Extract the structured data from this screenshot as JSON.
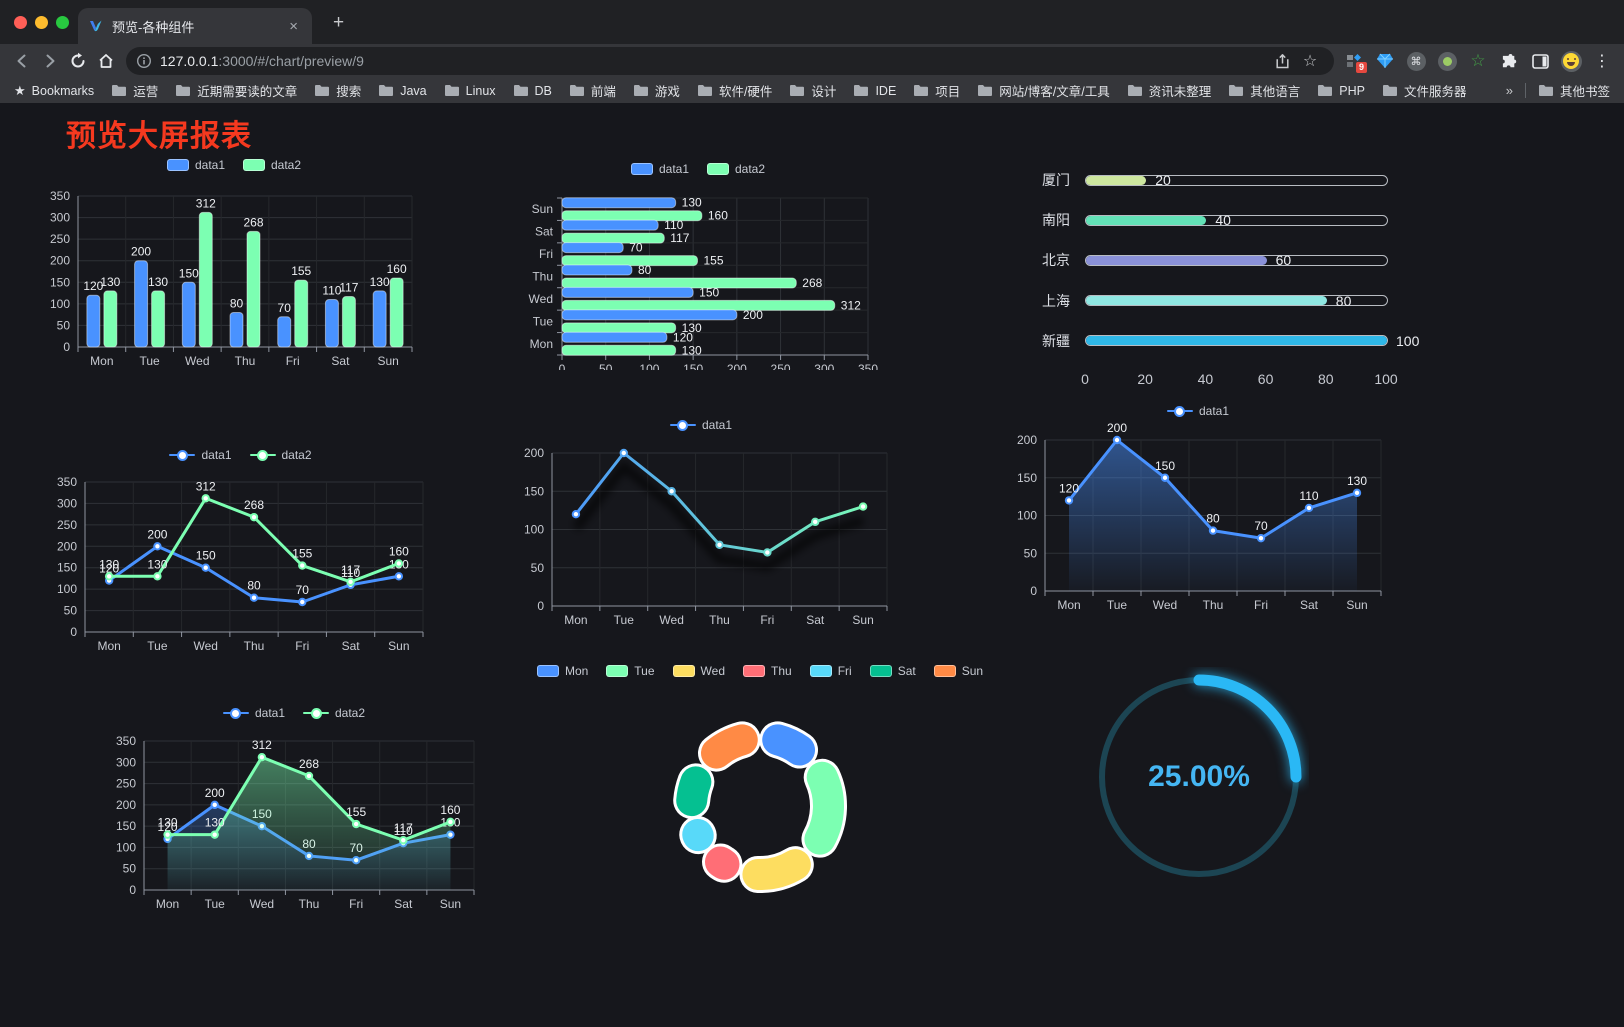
{
  "browser": {
    "tab_title": "预览-各种组件",
    "url_host": "127.0.0.1",
    "url_rest": ":3000/#/chart/preview/9",
    "extension_badge": "9",
    "bookmarks_label": "Bookmarks",
    "bookmarks": [
      "运营",
      "近期需要读的文章",
      "搜索",
      "Java",
      "Linux",
      "DB",
      "前端",
      "游戏",
      "软件/硬件",
      "设计",
      "IDE",
      "项目",
      "网站/博客/文章/工具",
      "资讯未整理",
      "其他语言",
      "PHP",
      "文件服务器"
    ],
    "overflow_glyph": "»",
    "other_bookmarks": "其他书签",
    "icons": {
      "close_glyph": "×",
      "plus_glyph": "+",
      "menu_glyph": "⋮",
      "star_glyph": "☆",
      "cmd_glyph": "⌘",
      "green_star_glyph": "☆"
    },
    "traffic_colors": [
      "#ff5f57",
      "#febc2e",
      "#28c840"
    ]
  },
  "page": {
    "title": "预览大屏报表",
    "title_color": "#f5391f",
    "background": "#16171c"
  },
  "chart_data": [
    {
      "id": "grouped-bar",
      "type": "bar",
      "categories": [
        "Mon",
        "Tue",
        "Wed",
        "Thu",
        "Fri",
        "Sat",
        "Sun"
      ],
      "series": [
        {
          "name": "data1",
          "color": "#4992ff",
          "values": [
            120,
            200,
            150,
            80,
            70,
            110,
            130
          ]
        },
        {
          "name": "data2",
          "color": "#7cffb2",
          "values": [
            130,
            130,
            312,
            268,
            155,
            117,
            160
          ]
        }
      ],
      "ylim": [
        0,
        350
      ],
      "ytick": 50,
      "labels": true,
      "legend_position": "top",
      "grid": true
    },
    {
      "id": "horizontal-bar",
      "type": "bar-horizontal",
      "categories": [
        "Mon",
        "Tue",
        "Wed",
        "Thu",
        "Fri",
        "Sat",
        "Sun"
      ],
      "series": [
        {
          "name": "data1",
          "color": "#4992ff",
          "values": [
            120,
            200,
            150,
            80,
            70,
            110,
            130
          ]
        },
        {
          "name": "data2",
          "color": "#7cffb2",
          "values": [
            130,
            130,
            312,
            268,
            155,
            117,
            160
          ]
        }
      ],
      "xlim": [
        0,
        350
      ],
      "xtick": 50,
      "labels": true,
      "legend_position": "top",
      "grid": true
    },
    {
      "id": "progress-bars",
      "type": "progress",
      "items": [
        {
          "label": "厦门",
          "value": 20,
          "color": "#cde79f"
        },
        {
          "label": "南阳",
          "value": 40,
          "color": "#63e2b7"
        },
        {
          "label": "北京",
          "value": 60,
          "color": "#8a91d8"
        },
        {
          "label": "上海",
          "value": 80,
          "color": "#8fe7e2"
        },
        {
          "label": "新疆",
          "value": 100,
          "color": "#2fb8e8"
        }
      ],
      "max": 100,
      "ticks": [
        0,
        20,
        40,
        60,
        80,
        100
      ]
    },
    {
      "id": "line-two-series",
      "type": "line",
      "categories": [
        "Mon",
        "Tue",
        "Wed",
        "Thu",
        "Fri",
        "Sat",
        "Sun"
      ],
      "series": [
        {
          "name": "data1",
          "color": "#4992ff",
          "values": [
            120,
            200,
            150,
            80,
            70,
            110,
            130
          ]
        },
        {
          "name": "data2",
          "color": "#7cffb2",
          "values": [
            130,
            130,
            312,
            268,
            155,
            117,
            160
          ]
        }
      ],
      "ylim": [
        0,
        350
      ],
      "ytick": 50,
      "labels": true,
      "legend_position": "top",
      "grid": true
    },
    {
      "id": "line-gradient",
      "type": "line",
      "categories": [
        "Mon",
        "Tue",
        "Wed",
        "Thu",
        "Fri",
        "Sat",
        "Sun"
      ],
      "series": [
        {
          "name": "data1",
          "color": "#4992ff",
          "colorEnd": "#7cffb2",
          "values": [
            120,
            200,
            150,
            80,
            70,
            110,
            130
          ]
        }
      ],
      "ylim": [
        0,
        200
      ],
      "ytick": 50,
      "labels": false,
      "shadow": true,
      "legend_position": "top",
      "grid": true
    },
    {
      "id": "area-blue",
      "type": "line",
      "categories": [
        "Mon",
        "Tue",
        "Wed",
        "Thu",
        "Fri",
        "Sat",
        "Sun"
      ],
      "series": [
        {
          "name": "data1",
          "color": "#4992ff",
          "area": true,
          "values": [
            120,
            200,
            150,
            80,
            70,
            110,
            130
          ]
        }
      ],
      "ylim": [
        0,
        200
      ],
      "ytick": 50,
      "labels": true,
      "legend_position": "top",
      "grid": true
    },
    {
      "id": "line-area-two-series",
      "type": "line",
      "categories": [
        "Mon",
        "Tue",
        "Wed",
        "Thu",
        "Fri",
        "Sat",
        "Sun"
      ],
      "series": [
        {
          "name": "data1",
          "color": "#4992ff",
          "area": true,
          "values": [
            120,
            200,
            150,
            80,
            70,
            110,
            130
          ]
        },
        {
          "name": "data2",
          "color": "#7cffb2",
          "area": true,
          "values": [
            130,
            130,
            312,
            268,
            155,
            117,
            160
          ]
        }
      ],
      "ylim": [
        0,
        350
      ],
      "ytick": 50,
      "labels": true,
      "legend_position": "top",
      "grid": true
    },
    {
      "id": "donut",
      "type": "pie",
      "labels": [
        "Mon",
        "Tue",
        "Wed",
        "Thu",
        "Fri",
        "Sat",
        "Sun"
      ],
      "values": [
        120,
        200,
        150,
        80,
        70,
        110,
        130
      ],
      "colors": [
        "#4992ff",
        "#7cffb2",
        "#fddd60",
        "#ff6e76",
        "#58d9f9",
        "#05c091",
        "#ff8a45"
      ],
      "inner_radius_ratio": 0.62,
      "legend_position": "top"
    },
    {
      "id": "gauge",
      "type": "gauge",
      "value": 25,
      "max": 100,
      "display": "25.00%",
      "color": "#2ab8f5",
      "track_color": "#1c4553"
    }
  ]
}
